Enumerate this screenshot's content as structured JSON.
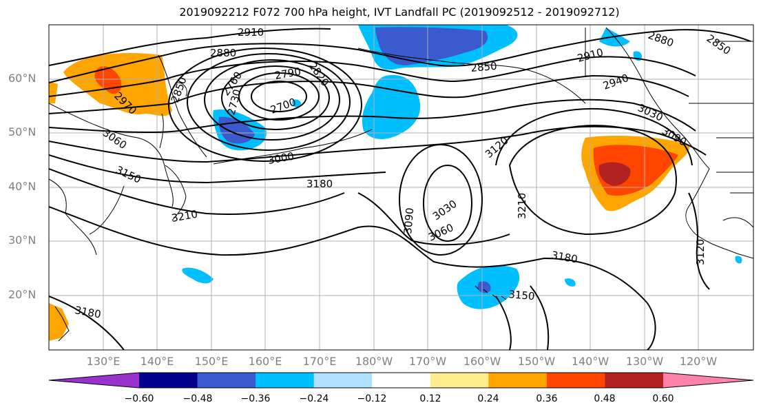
{
  "title": "2019092212 F072 700 hPa height, IVT Landfall PC (2019092512 - 2019092712)",
  "lat_labels": [
    "60°N",
    "50°N",
    "40°N",
    "30°N",
    "20°N"
  ],
  "lon_labels": [
    "130°E",
    "140°E",
    "150°E",
    "160°E",
    "170°E",
    "180°W",
    "170°W",
    "160°W",
    "150°W",
    "140°W",
    "130°W",
    "120°W"
  ],
  "colorbar": {
    "colors": [
      "#9932cc",
      "#00008b",
      "#3a5acd",
      "#00bfff",
      "#b0e2ff",
      "#ffffff",
      "#ffec8b",
      "#ffa500",
      "#ff4500",
      "#b22222",
      "#ff82ab"
    ],
    "labels": [
      "−0.60",
      "−0.48",
      "−0.36",
      "−0.24",
      "−0.12",
      "0.12",
      "0.24",
      "0.36",
      "0.48",
      "0.60"
    ]
  },
  "contour_labels": [
    "2910",
    "2880",
    "2850",
    "2970",
    "2790",
    "2820",
    "2760",
    "2730",
    "2700",
    "3000",
    "3060",
    "3150",
    "3180",
    "3210",
    "3090",
    "3030",
    "3060",
    "3120",
    "2880",
    "2850",
    "2910",
    "2940",
    "3030",
    "3090",
    "3210",
    "3180",
    "3150",
    "3120",
    "3180",
    "2850"
  ],
  "colors": {
    "grid": "#b0b0b0",
    "coast": "#000000",
    "tick_label": "#808080"
  }
}
